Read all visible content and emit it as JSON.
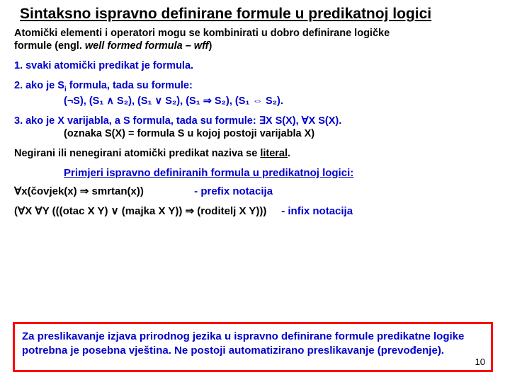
{
  "title": "Sintaksno ispravno definirane formule u predikatnoj logici",
  "intro": {
    "line1": "Atomički elementi i operatori mogu se kombinirati u dobro definirane logičke",
    "line2_a": "formule (engl. ",
    "line2_b": "well formed formula – wff",
    "line2_c": ")"
  },
  "rule1": "1. svaki atomički predikat je formula.",
  "rule2": {
    "lead_a": "2. ako je S",
    "lead_sub": "i",
    "lead_b": " formula, tada su formule:",
    "body": "(¬S), (S₁ ∧ S₂), (S₁ ∨ S₂), (S₁ ⇒ S₂), (S₁ ⇔ S₂)."
  },
  "rule3": {
    "line1_a": "3. ako je X varijabla, a S formula, tada su formule:   ",
    "line1_b": "∃X S(X),        ∀X S(X).",
    "line2": "(oznaka S(X) = formula S u kojoj postoji varijabla X)"
  },
  "literal": {
    "a": "Negirani ili nenegirani atomički predikat naziva se ",
    "b": "literal",
    "c": "."
  },
  "examples_title": "Primjeri ispravno definiranih formula u predikatnoj logici:",
  "ex1": {
    "lhs": "∀x(čovjek(x) ⇒ smrtan(x))",
    "rhs": "- prefix notacija"
  },
  "ex2": {
    "lhs": "(∀X ∀Y (((otac X Y) ∨ (majka X Y)) ⇒ (roditelj X Y)))",
    "rhs": "- infix notacija"
  },
  "redbox": "Za preslikavanje izjava prirodnog jezika u ispravno definirane formule predikatne logike potrebna je posebna vještina. Ne postoji automatizirano preslikavanje (prevođenje).",
  "pagenum": "10",
  "colors": {
    "text": "#000000",
    "blue": "#0000cc",
    "redborder": "#ff0000",
    "background": "#ffffff"
  }
}
